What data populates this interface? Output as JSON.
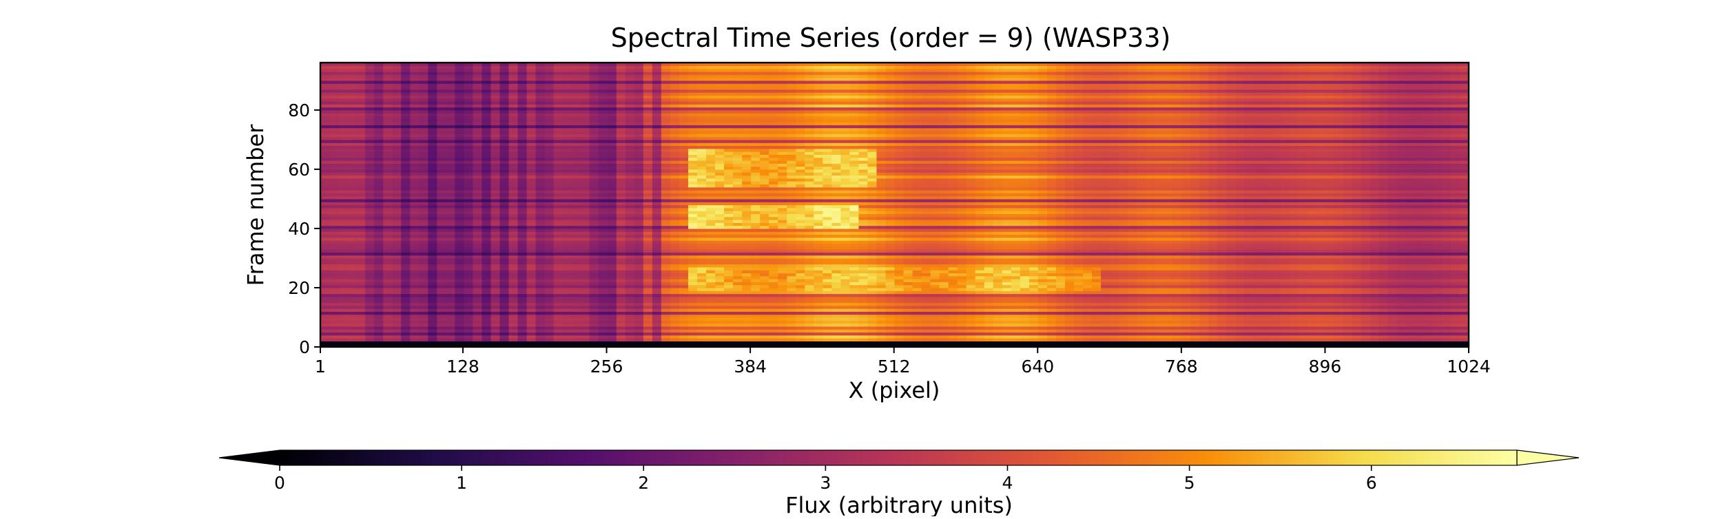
{
  "chart_data": {
    "type": "heatmap",
    "title": "Spectral Time Series (order = 9) (WASP33)",
    "xlabel": "X (pixel)",
    "ylabel": "Frame number",
    "xlim": [
      1,
      1024
    ],
    "ylim": [
      0,
      96
    ],
    "x_ticks": [
      1,
      128,
      256,
      384,
      512,
      640,
      768,
      896,
      1024
    ],
    "y_ticks": [
      0,
      20,
      40,
      60,
      80
    ],
    "colormap": "inferno",
    "colorbar": {
      "label": "Flux (arbitrary units)",
      "range": [
        0,
        6.8
      ],
      "ticks": [
        0,
        1,
        2,
        3,
        4,
        5,
        6
      ],
      "extend": "both",
      "orientation": "horizontal",
      "position": "bottom"
    },
    "data_description": {
      "frame_rows_dark_below": 2,
      "column_flux_profile": [
        {
          "x": 1,
          "flux": 3.2
        },
        {
          "x": 64,
          "flux": 3.0
        },
        {
          "x": 128,
          "flux": 2.8
        },
        {
          "x": 200,
          "flux": 3.1
        },
        {
          "x": 256,
          "flux": 3.4
        },
        {
          "x": 320,
          "flux": 4.4
        },
        {
          "x": 384,
          "flux": 5.2
        },
        {
          "x": 448,
          "flux": 5.1
        },
        {
          "x": 512,
          "flux": 4.9
        },
        {
          "x": 576,
          "flux": 4.8
        },
        {
          "x": 640,
          "flux": 4.9
        },
        {
          "x": 704,
          "flux": 4.5
        },
        {
          "x": 768,
          "flux": 4.3
        },
        {
          "x": 832,
          "flux": 4.1
        },
        {
          "x": 896,
          "flux": 3.8
        },
        {
          "x": 960,
          "flux": 3.5
        },
        {
          "x": 1024,
          "flux": 3.4
        }
      ],
      "bright_regions": [
        {
          "x_range": [
            330,
            480
          ],
          "frame_range": [
            40,
            47
          ],
          "flux": 6.3
        },
        {
          "x_range": [
            330,
            500
          ],
          "frame_range": [
            54,
            66
          ],
          "flux": 6.0
        },
        {
          "x_range": [
            330,
            700
          ],
          "frame_range": [
            19,
            26
          ],
          "flux": 5.8
        }
      ],
      "dark_absorption_columns": [
        50,
        75,
        100,
        128,
        148,
        165,
        182,
        200,
        250,
        262,
        282,
        300
      ],
      "dark_frame_rows": [
        4,
        11,
        17,
        31,
        40,
        49,
        69,
        74,
        80,
        89
      ]
    },
    "colors": {
      "cmap_stops": [
        "#000004",
        "#1f0c48",
        "#550f6d",
        "#88226a",
        "#ba3655",
        "#e35933",
        "#f98e09",
        "#f5db4b",
        "#fcffa4"
      ]
    }
  }
}
